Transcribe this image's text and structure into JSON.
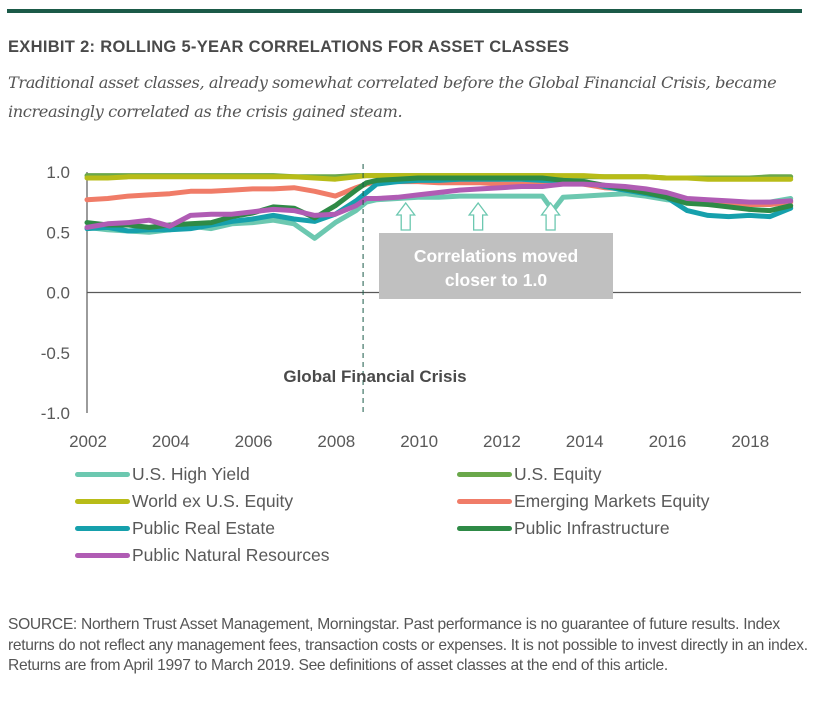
{
  "header": {
    "title": "EXHIBIT 2: ROLLING 5-YEAR CORRELATIONS FOR ASSET CLASSES",
    "subtitle": "Traditional asset classes, already somewhat correlated before the Global Financial Crisis, became increasingly correlated as the crisis gained steam."
  },
  "chart_data": {
    "type": "line",
    "title": "Rolling 5-Year Correlations for Asset Classes",
    "xlabel": "",
    "ylabel": "",
    "xlim": [
      2002,
      2019.25
    ],
    "ylim": [
      -1.0,
      1.0
    ],
    "x_ticks": [
      "2002",
      "2004",
      "2006",
      "2008",
      "2010",
      "2012",
      "2014",
      "2016",
      "2018"
    ],
    "y_ticks": [
      "1.0",
      "0.5",
      "0.0",
      "-0.5",
      "-1.0"
    ],
    "grid": false,
    "legend_position": "bottom",
    "x": [
      2002.0,
      2002.5,
      2003.0,
      2003.5,
      2004.0,
      2004.5,
      2005.0,
      2005.5,
      2006.0,
      2006.5,
      2007.0,
      2007.5,
      2008.0,
      2008.5,
      2008.75,
      2009.0,
      2009.5,
      2010.0,
      2010.5,
      2011.0,
      2011.5,
      2012.0,
      2012.5,
      2013.0,
      2013.25,
      2013.5,
      2014.0,
      2014.5,
      2015.0,
      2015.5,
      2016.0,
      2016.5,
      2017.0,
      2017.5,
      2018.0,
      2018.5,
      2019.0
    ],
    "series": [
      {
        "name": "U.S. High Yield",
        "color": "#6cc8b0",
        "values": [
          0.54,
          0.52,
          0.51,
          0.5,
          0.52,
          0.55,
          0.53,
          0.57,
          0.58,
          0.6,
          0.57,
          0.45,
          0.58,
          0.68,
          0.75,
          0.77,
          0.78,
          0.79,
          0.79,
          0.8,
          0.8,
          0.8,
          0.8,
          0.8,
          0.68,
          0.79,
          0.8,
          0.81,
          0.82,
          0.8,
          0.77,
          0.76,
          0.74,
          0.74,
          0.74,
          0.75,
          0.78
        ]
      },
      {
        "name": "U.S. Equity",
        "color": "#6aa84a",
        "values": [
          0.97,
          0.97,
          0.97,
          0.97,
          0.97,
          0.97,
          0.97,
          0.97,
          0.97,
          0.97,
          0.96,
          0.96,
          0.96,
          0.97,
          0.97,
          0.97,
          0.97,
          0.97,
          0.97,
          0.97,
          0.97,
          0.97,
          0.97,
          0.97,
          0.97,
          0.96,
          0.96,
          0.96,
          0.96,
          0.96,
          0.95,
          0.95,
          0.95,
          0.95,
          0.95,
          0.96,
          0.96
        ]
      },
      {
        "name": "World ex U.S. Equity",
        "color": "#b8bc18",
        "values": [
          0.95,
          0.95,
          0.96,
          0.96,
          0.96,
          0.96,
          0.96,
          0.96,
          0.96,
          0.96,
          0.96,
          0.95,
          0.94,
          0.96,
          0.97,
          0.97,
          0.97,
          0.97,
          0.97,
          0.97,
          0.97,
          0.97,
          0.97,
          0.97,
          0.97,
          0.97,
          0.97,
          0.96,
          0.96,
          0.96,
          0.95,
          0.95,
          0.94,
          0.94,
          0.94,
          0.94,
          0.94
        ]
      },
      {
        "name": "Emerging Markets Equity",
        "color": "#f07c68",
        "values": [
          0.77,
          0.78,
          0.8,
          0.81,
          0.82,
          0.84,
          0.84,
          0.85,
          0.86,
          0.86,
          0.87,
          0.84,
          0.8,
          0.87,
          0.9,
          0.92,
          0.92,
          0.92,
          0.91,
          0.91,
          0.91,
          0.9,
          0.9,
          0.91,
          0.91,
          0.91,
          0.9,
          0.87,
          0.86,
          0.84,
          0.8,
          0.76,
          0.75,
          0.74,
          0.73,
          0.73,
          0.75
        ]
      },
      {
        "name": "Public Real Estate",
        "color": "#16a0ac",
        "values": [
          0.53,
          0.54,
          0.51,
          0.52,
          0.52,
          0.53,
          0.56,
          0.59,
          0.61,
          0.64,
          0.61,
          0.59,
          0.65,
          0.76,
          0.83,
          0.9,
          0.92,
          0.93,
          0.93,
          0.94,
          0.94,
          0.94,
          0.94,
          0.93,
          0.93,
          0.93,
          0.92,
          0.88,
          0.85,
          0.82,
          0.79,
          0.68,
          0.64,
          0.63,
          0.64,
          0.63,
          0.7
        ]
      },
      {
        "name": "Public Infrastructure",
        "color": "#2e8a46",
        "values": [
          0.58,
          0.56,
          0.56,
          0.54,
          0.56,
          0.57,
          0.58,
          0.63,
          0.66,
          0.71,
          0.7,
          0.62,
          0.72,
          0.85,
          0.91,
          0.93,
          0.94,
          0.95,
          0.95,
          0.95,
          0.95,
          0.95,
          0.95,
          0.95,
          0.94,
          0.93,
          0.92,
          0.89,
          0.86,
          0.83,
          0.79,
          0.74,
          0.73,
          0.71,
          0.69,
          0.68,
          0.72
        ]
      },
      {
        "name": "Public Natural Resources",
        "color": "#b05cb4",
        "values": [
          0.54,
          0.57,
          0.58,
          0.6,
          0.55,
          0.64,
          0.65,
          0.65,
          0.67,
          0.69,
          0.68,
          0.64,
          0.65,
          0.72,
          0.78,
          0.78,
          0.79,
          0.81,
          0.83,
          0.85,
          0.86,
          0.87,
          0.88,
          0.88,
          0.89,
          0.9,
          0.9,
          0.89,
          0.88,
          0.86,
          0.83,
          0.78,
          0.77,
          0.76,
          0.75,
          0.75,
          0.76
        ]
      }
    ],
    "annotations": {
      "crisis_line_x": 2008.67,
      "crisis_label": "Global Financial Crisis",
      "box_text_line1": "Correlations moved",
      "box_text_line2": "closer to 1.0",
      "arrow_x": [
        2009.7,
        2011.45,
        2013.2
      ]
    }
  },
  "legend": [
    {
      "label": "U.S. High Yield",
      "color": "#6cc8b0"
    },
    {
      "label": "U.S. Equity",
      "color": "#6aa84a"
    },
    {
      "label": "World ex U.S. Equity",
      "color": "#b8bc18"
    },
    {
      "label": "Emerging Markets Equity",
      "color": "#f07c68"
    },
    {
      "label": "Public Real Estate",
      "color": "#16a0ac"
    },
    {
      "label": "Public Infrastructure",
      "color": "#2e8a46"
    },
    {
      "label": "Public Natural Resources",
      "color": "#b05cb4"
    }
  ],
  "footer": {
    "source": "SOURCE: Northern Trust Asset Management, Morningstar. Past performance is no guarantee of future results. Index returns do not reflect any management fees, transaction costs or expenses. It is not possible to invest directly in an index. Returns are from April 1997 to March 2019. See definitions of asset classes at the end of this article."
  },
  "colors": {
    "brand_bar": "#1b5a48",
    "axis": "#595959",
    "annotation_box": "#c0c0c0",
    "arrow": "#6cc8b0"
  }
}
